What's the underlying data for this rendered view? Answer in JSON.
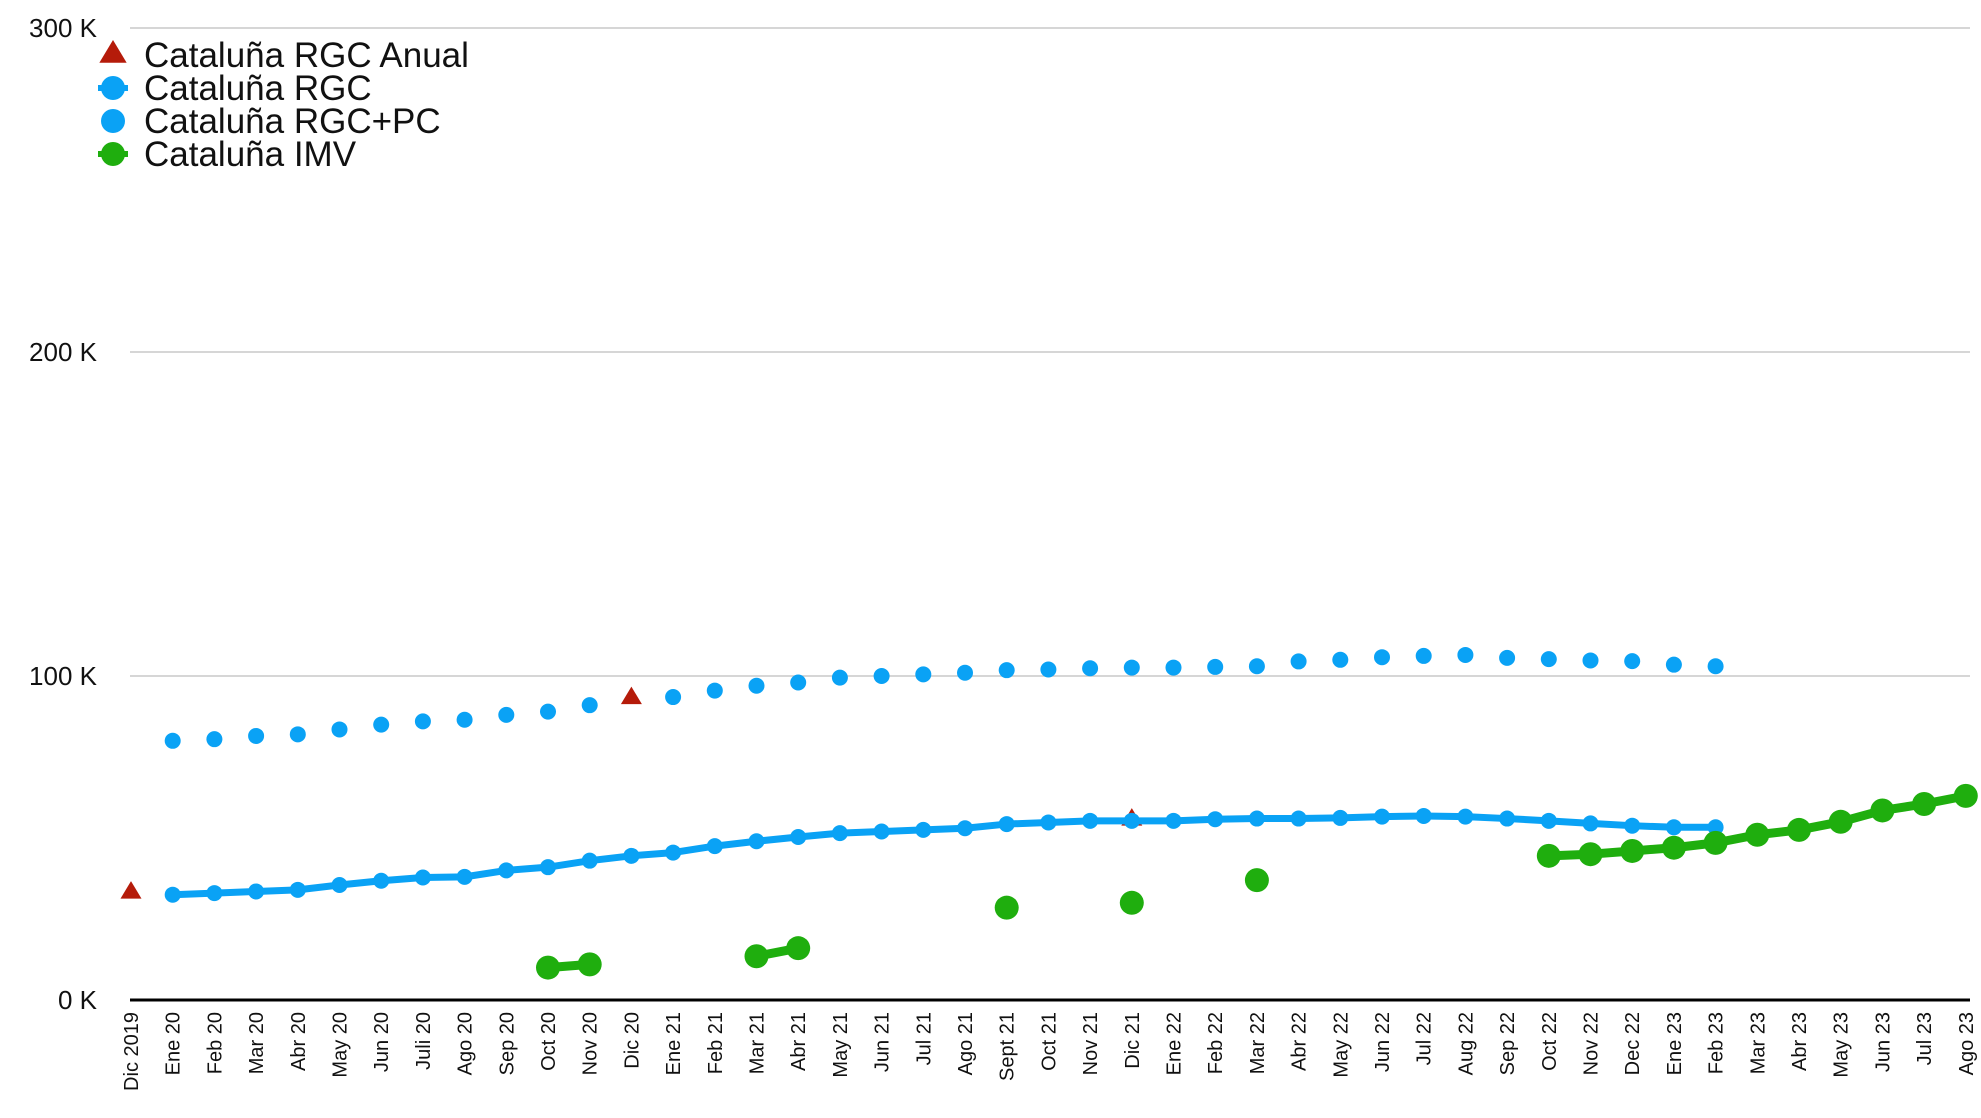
{
  "chart_data": {
    "type": "line",
    "categories": [
      "Dic 2019",
      "Ene 20",
      "Feb 20",
      "Mar 20",
      "Abr 20",
      "May 20",
      "Jun 20",
      "Juli 20",
      "Ago 20",
      "Sep 20",
      "Oct 20",
      "Nov 20",
      "Dic 20",
      "Ene 21",
      "Feb 21",
      "Mar 21",
      "Abr 21",
      "May 21",
      "Jun 21",
      "Jul 21",
      "Ago 21",
      "Sept 21",
      "Oct 21",
      "Nov 21",
      "Dic 21",
      "Ene 22",
      "Feb 22",
      "Mar 22",
      "Abr 22",
      "May 22",
      "Jun 22",
      "Jul 22",
      "Aug 22",
      "Sep 22",
      "Oct 22",
      "Nov 22",
      "Dec 22",
      "Ene 23",
      "Feb 23",
      "Mar 23",
      "Abr 23",
      "May 23",
      "Jun 23",
      "Jul 23",
      "Ago 23"
    ],
    "ylim": [
      0,
      300000
    ],
    "yticks": [
      0,
      100000,
      200000,
      300000
    ],
    "ytick_labels": [
      "0 K",
      "100 K",
      "200 K",
      "300 K"
    ],
    "grid": true,
    "legend_position": "top-left",
    "series": [
      {
        "name": "Cataluña RGC Anual",
        "marker": "triangle",
        "line": false,
        "color": "#b51b0a",
        "values": [
          33000,
          null,
          null,
          null,
          null,
          null,
          null,
          null,
          null,
          null,
          null,
          null,
          93000,
          null,
          null,
          null,
          null,
          null,
          null,
          null,
          null,
          null,
          null,
          null,
          55500,
          null,
          null,
          null,
          null,
          null,
          null,
          null,
          null,
          null,
          null,
          null,
          null,
          null,
          null,
          null,
          null,
          null,
          null,
          null,
          null
        ]
      },
      {
        "name": "Cataluña RGC",
        "marker": "circle",
        "line": true,
        "color": "#0aa2f5",
        "values": [
          null,
          32500,
          33000,
          33500,
          34000,
          35500,
          36800,
          37800,
          38000,
          40000,
          41000,
          43000,
          44500,
          45500,
          47500,
          49000,
          50300,
          51500,
          52000,
          52500,
          53000,
          54300,
          54800,
          55300,
          55300,
          55300,
          55800,
          56000,
          56000,
          56200,
          56600,
          56800,
          56600,
          56000,
          55300,
          54500,
          53800,
          53300,
          53300,
          null,
          null,
          null,
          null,
          null,
          null
        ]
      },
      {
        "name": "Cataluña RGC+PC",
        "marker": "circle",
        "line": false,
        "color": "#0aa2f5",
        "values": [
          null,
          80000,
          80500,
          81500,
          82000,
          83500,
          85000,
          86000,
          86500,
          88000,
          89000,
          91000,
          null,
          93500,
          95500,
          97000,
          98000,
          99500,
          100000,
          100500,
          101000,
          101800,
          102000,
          102400,
          102600,
          102600,
          102800,
          103000,
          104500,
          105000,
          105800,
          106200,
          106500,
          105600,
          105200,
          104800,
          104600,
          103500,
          103000,
          null,
          null,
          null,
          null,
          null,
          null
        ]
      },
      {
        "name": "Cataluña IMV",
        "marker": "circle",
        "line": true,
        "color": "#1fae0e",
        "values": [
          null,
          null,
          null,
          null,
          null,
          null,
          null,
          null,
          null,
          null,
          10000,
          11000,
          null,
          null,
          null,
          13500,
          16000,
          null,
          null,
          null,
          null,
          28500,
          null,
          null,
          30000,
          null,
          null,
          37000,
          null,
          null,
          null,
          null,
          null,
          null,
          44500,
          45000,
          46000,
          47000,
          48500,
          51000,
          52500,
          55000,
          58500,
          60500,
          63000
        ]
      }
    ]
  }
}
